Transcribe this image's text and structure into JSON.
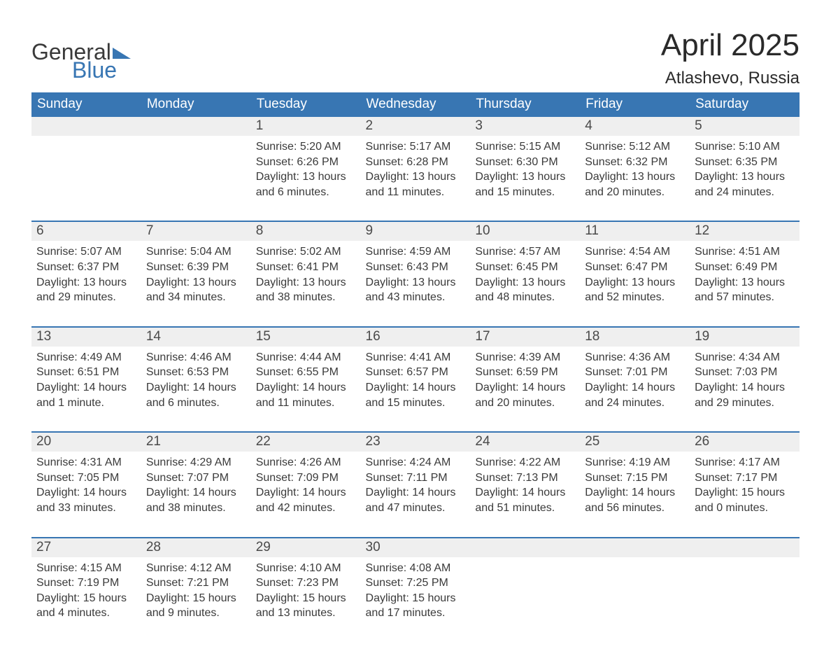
{
  "logo": {
    "word1": "General",
    "word2": "Blue"
  },
  "title": "April 2025",
  "location": "Atlashevo, Russia",
  "colors": {
    "header_bg": "#3876b3",
    "header_text": "#ffffff",
    "daynum_bg": "#efefef",
    "daynum_text": "#4a4a4a",
    "body_text": "#3a3a3a",
    "rule": "#3876b3",
    "page_bg": "#ffffff"
  },
  "typography": {
    "title_fontsize": 44,
    "location_fontsize": 24,
    "weekday_fontsize": 19,
    "daynum_fontsize": 19,
    "detail_fontsize": 16,
    "font_family": "Arial"
  },
  "layout": {
    "columns": 7,
    "week_rows": 5,
    "first_weekday_index": 2
  },
  "weekdays": [
    "Sunday",
    "Monday",
    "Tuesday",
    "Wednesday",
    "Thursday",
    "Friday",
    "Saturday"
  ],
  "days": [
    {
      "n": 1,
      "sunrise": "5:20 AM",
      "sunset": "6:26 PM",
      "dl_h": 13,
      "dl_m": 6
    },
    {
      "n": 2,
      "sunrise": "5:17 AM",
      "sunset": "6:28 PM",
      "dl_h": 13,
      "dl_m": 11
    },
    {
      "n": 3,
      "sunrise": "5:15 AM",
      "sunset": "6:30 PM",
      "dl_h": 13,
      "dl_m": 15
    },
    {
      "n": 4,
      "sunrise": "5:12 AM",
      "sunset": "6:32 PM",
      "dl_h": 13,
      "dl_m": 20
    },
    {
      "n": 5,
      "sunrise": "5:10 AM",
      "sunset": "6:35 PM",
      "dl_h": 13,
      "dl_m": 24
    },
    {
      "n": 6,
      "sunrise": "5:07 AM",
      "sunset": "6:37 PM",
      "dl_h": 13,
      "dl_m": 29
    },
    {
      "n": 7,
      "sunrise": "5:04 AM",
      "sunset": "6:39 PM",
      "dl_h": 13,
      "dl_m": 34
    },
    {
      "n": 8,
      "sunrise": "5:02 AM",
      "sunset": "6:41 PM",
      "dl_h": 13,
      "dl_m": 38
    },
    {
      "n": 9,
      "sunrise": "4:59 AM",
      "sunset": "6:43 PM",
      "dl_h": 13,
      "dl_m": 43
    },
    {
      "n": 10,
      "sunrise": "4:57 AM",
      "sunset": "6:45 PM",
      "dl_h": 13,
      "dl_m": 48
    },
    {
      "n": 11,
      "sunrise": "4:54 AM",
      "sunset": "6:47 PM",
      "dl_h": 13,
      "dl_m": 52
    },
    {
      "n": 12,
      "sunrise": "4:51 AM",
      "sunset": "6:49 PM",
      "dl_h": 13,
      "dl_m": 57
    },
    {
      "n": 13,
      "sunrise": "4:49 AM",
      "sunset": "6:51 PM",
      "dl_h": 14,
      "dl_m": 1
    },
    {
      "n": 14,
      "sunrise": "4:46 AM",
      "sunset": "6:53 PM",
      "dl_h": 14,
      "dl_m": 6
    },
    {
      "n": 15,
      "sunrise": "4:44 AM",
      "sunset": "6:55 PM",
      "dl_h": 14,
      "dl_m": 11
    },
    {
      "n": 16,
      "sunrise": "4:41 AM",
      "sunset": "6:57 PM",
      "dl_h": 14,
      "dl_m": 15
    },
    {
      "n": 17,
      "sunrise": "4:39 AM",
      "sunset": "6:59 PM",
      "dl_h": 14,
      "dl_m": 20
    },
    {
      "n": 18,
      "sunrise": "4:36 AM",
      "sunset": "7:01 PM",
      "dl_h": 14,
      "dl_m": 24
    },
    {
      "n": 19,
      "sunrise": "4:34 AM",
      "sunset": "7:03 PM",
      "dl_h": 14,
      "dl_m": 29
    },
    {
      "n": 20,
      "sunrise": "4:31 AM",
      "sunset": "7:05 PM",
      "dl_h": 14,
      "dl_m": 33
    },
    {
      "n": 21,
      "sunrise": "4:29 AM",
      "sunset": "7:07 PM",
      "dl_h": 14,
      "dl_m": 38
    },
    {
      "n": 22,
      "sunrise": "4:26 AM",
      "sunset": "7:09 PM",
      "dl_h": 14,
      "dl_m": 42
    },
    {
      "n": 23,
      "sunrise": "4:24 AM",
      "sunset": "7:11 PM",
      "dl_h": 14,
      "dl_m": 47
    },
    {
      "n": 24,
      "sunrise": "4:22 AM",
      "sunset": "7:13 PM",
      "dl_h": 14,
      "dl_m": 51
    },
    {
      "n": 25,
      "sunrise": "4:19 AM",
      "sunset": "7:15 PM",
      "dl_h": 14,
      "dl_m": 56
    },
    {
      "n": 26,
      "sunrise": "4:17 AM",
      "sunset": "7:17 PM",
      "dl_h": 15,
      "dl_m": 0
    },
    {
      "n": 27,
      "sunrise": "4:15 AM",
      "sunset": "7:19 PM",
      "dl_h": 15,
      "dl_m": 4
    },
    {
      "n": 28,
      "sunrise": "4:12 AM",
      "sunset": "7:21 PM",
      "dl_h": 15,
      "dl_m": 9
    },
    {
      "n": 29,
      "sunrise": "4:10 AM",
      "sunset": "7:23 PM",
      "dl_h": 15,
      "dl_m": 13
    },
    {
      "n": 30,
      "sunrise": "4:08 AM",
      "sunset": "7:25 PM",
      "dl_h": 15,
      "dl_m": 17
    }
  ],
  "labels": {
    "sunrise": "Sunrise:",
    "sunset": "Sunset:",
    "daylight": "Daylight:",
    "hours": "hours",
    "and": "and",
    "minute_singular": "minute.",
    "minute_plural": "minutes."
  }
}
